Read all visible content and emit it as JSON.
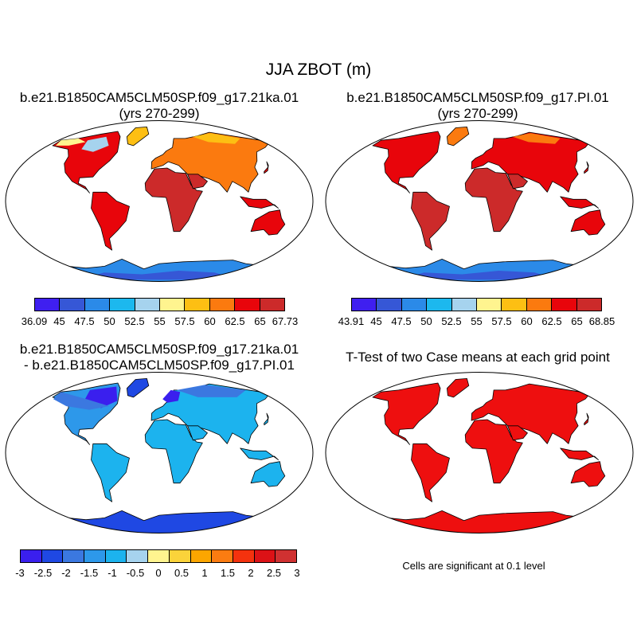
{
  "title": "JJA ZBOT (m)",
  "panels": {
    "top_left": {
      "title_line1": "b.e21.B1850CAM5CLM50SP.f09_g17.21ka.01",
      "title_line2": "(yrs 270-299)",
      "colorbar_labels": [
        "36.09",
        "45",
        "47.5",
        "50",
        "52.5",
        "55",
        "57.5",
        "60",
        "62.5",
        "65",
        "67.73"
      ]
    },
    "top_right": {
      "title_line1": "b.e21.B1850CAM5CLM50SP.f09_g17.PI.01",
      "title_line2": "(yrs 270-299)",
      "colorbar_labels": [
        "43.91",
        "45",
        "47.5",
        "50",
        "52.5",
        "55",
        "57.5",
        "60",
        "62.5",
        "65",
        "68.85"
      ]
    },
    "bottom_left": {
      "title_line1": "b.e21.B1850CAM5CLM50SP.f09_g17.21ka.01",
      "title_line2": "- b.e21.B1850CAM5CLM50SP.f09_g17.PI.01",
      "colorbar_labels": [
        "-3",
        "-2.5",
        "-2",
        "-1.5",
        "-1",
        "-0.5",
        "0",
        "0.5",
        "1",
        "1.5",
        "2",
        "2.5",
        "3"
      ]
    },
    "bottom_right": {
      "title_line1": "T-Test of two Case means at each grid point",
      "note": "Cells are significant at 0.1 level"
    }
  },
  "colors": {
    "abs_scale": [
      "#3f1ff0",
      "#3657d6",
      "#2b8ae8",
      "#1cb8ee",
      "#a6d3ee",
      "#fff48f",
      "#fdbf13",
      "#fb7a0f",
      "#e8050b",
      "#cc2a2a"
    ],
    "diff_scale": [
      "#3a1fee",
      "#1f48e3",
      "#3b78e0",
      "#2d98ea",
      "#1cb3ee",
      "#a6d3ee",
      "#fff48f",
      "#fbd33a",
      "#fca600",
      "#fb7c11",
      "#f4320e",
      "#dc1216",
      "#d03131"
    ],
    "significant": "#ee0f0f",
    "coast": "#000000"
  }
}
